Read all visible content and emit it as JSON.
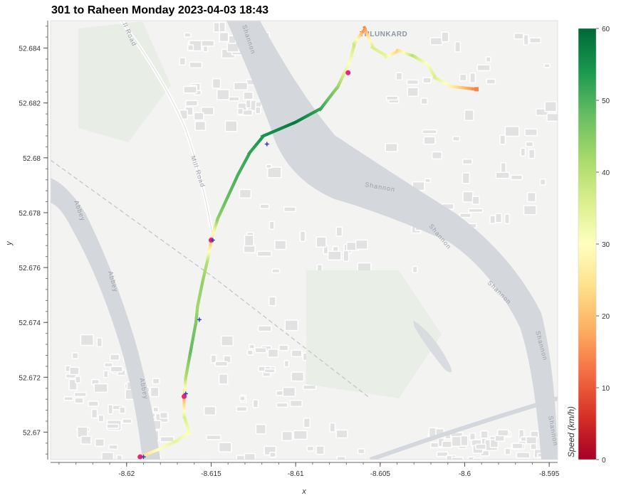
{
  "title": "301 to Raheen Monday 2023-04-03 18:43",
  "map_labels": {
    "place": "THLUNKARD",
    "river_1": "Shannon",
    "river_2": "Shannon",
    "river_3": "Shannon",
    "river_4": "Shannon",
    "river_5": "Shannon",
    "river_6": "Shannon",
    "road_1": "Mill Road",
    "road_2": "ll Road",
    "canal_1": "Abbey",
    "canal_2": "Abbey",
    "canal_3": "Abbey"
  },
  "chart_data": {
    "type": "scatter",
    "xlabel": "x",
    "ylabel": "y",
    "xlim": [
      -8.6245,
      -8.5945
    ],
    "ylim": [
      52.669,
      52.685
    ],
    "x_ticks": [
      -8.62,
      -8.615,
      -8.61,
      -8.605,
      -8.6,
      -8.595
    ],
    "x_tick_labels": [
      "-8.62",
      "-8.615",
      "-8.61",
      "-8.605",
      "-8.6",
      "-8.595"
    ],
    "y_ticks": [
      52.67,
      52.672,
      52.674,
      52.676,
      52.678,
      52.68,
      52.682,
      52.684
    ],
    "y_tick_labels": [
      "52.67",
      "52.672",
      "52.674",
      "52.676",
      "52.678",
      "52.68",
      "52.682",
      "52.684"
    ],
    "colorbar": {
      "label": "Speed (km/h)",
      "min": 0,
      "max": 60,
      "ticks": [
        0,
        10,
        20,
        30,
        40,
        50,
        60
      ],
      "tick_labels": [
        "0",
        "10",
        "20",
        "30",
        "40",
        "50",
        "60"
      ],
      "colormap": "RdYlGn",
      "colors": [
        "#a50026",
        "#d73027",
        "#f46d43",
        "#fdae61",
        "#fee08b",
        "#ffffbf",
        "#d9ef8b",
        "#a6d96a",
        "#66bd63",
        "#1a9850",
        "#006837"
      ]
    },
    "track": {
      "name": "speed",
      "points": [
        {
          "x": -8.6192,
          "y": 52.6691,
          "speed": 22
        },
        {
          "x": -8.618,
          "y": 52.6694,
          "speed": 30
        },
        {
          "x": -8.617,
          "y": 52.6697,
          "speed": 34
        },
        {
          "x": -8.6163,
          "y": 52.67,
          "speed": 30
        },
        {
          "x": -8.6166,
          "y": 52.6706,
          "speed": 36
        },
        {
          "x": -8.6166,
          "y": 52.6713,
          "speed": 18
        },
        {
          "x": -8.6165,
          "y": 52.672,
          "speed": 40
        },
        {
          "x": -8.6162,
          "y": 52.673,
          "speed": 48
        },
        {
          "x": -8.6159,
          "y": 52.674,
          "speed": 46
        },
        {
          "x": -8.6158,
          "y": 52.6746,
          "speed": 42
        },
        {
          "x": -8.6155,
          "y": 52.6755,
          "speed": 44
        },
        {
          "x": -8.6152,
          "y": 52.6763,
          "speed": 40
        },
        {
          "x": -8.615,
          "y": 52.677,
          "speed": 20
        },
        {
          "x": -8.6146,
          "y": 52.6778,
          "speed": 44
        },
        {
          "x": -8.614,
          "y": 52.6786,
          "speed": 48
        },
        {
          "x": -8.6134,
          "y": 52.6794,
          "speed": 50
        },
        {
          "x": -8.6127,
          "y": 52.6802,
          "speed": 52
        },
        {
          "x": -8.6119,
          "y": 52.6808,
          "speed": 54
        },
        {
          "x": -8.61,
          "y": 52.6813,
          "speed": 58
        },
        {
          "x": -8.6085,
          "y": 52.6818,
          "speed": 52
        },
        {
          "x": -8.6075,
          "y": 52.6826,
          "speed": 44
        },
        {
          "x": -8.6068,
          "y": 52.6835,
          "speed": 30
        },
        {
          "x": -8.6065,
          "y": 52.6842,
          "speed": 38
        },
        {
          "x": -8.6059,
          "y": 52.6847,
          "speed": 14
        },
        {
          "x": -8.6054,
          "y": 52.684,
          "speed": 36
        },
        {
          "x": -8.6046,
          "y": 52.6837,
          "speed": 34
        },
        {
          "x": -8.6039,
          "y": 52.6839,
          "speed": 22
        },
        {
          "x": -8.603,
          "y": 52.6837,
          "speed": 40
        },
        {
          "x": -8.6022,
          "y": 52.6834,
          "speed": 30
        },
        {
          "x": -8.6017,
          "y": 52.6829,
          "speed": 36
        },
        {
          "x": -8.6008,
          "y": 52.6826,
          "speed": 28
        },
        {
          "x": -8.5993,
          "y": 52.6825,
          "speed": 14
        }
      ]
    },
    "stop_markers": [
      {
        "x": -8.6192,
        "y": 52.6691
      },
      {
        "x": -8.6166,
        "y": 52.6713
      },
      {
        "x": -8.615,
        "y": 52.677
      },
      {
        "x": -8.6069,
        "y": 52.6831
      }
    ],
    "gps_markers": [
      {
        "x": -8.619,
        "y": 52.6691
      },
      {
        "x": -8.6165,
        "y": 52.6714
      },
      {
        "x": -8.6157,
        "y": 52.6741
      },
      {
        "x": -8.6149,
        "y": 52.677
      },
      {
        "x": -8.6117,
        "y": 52.6805
      }
    ]
  }
}
